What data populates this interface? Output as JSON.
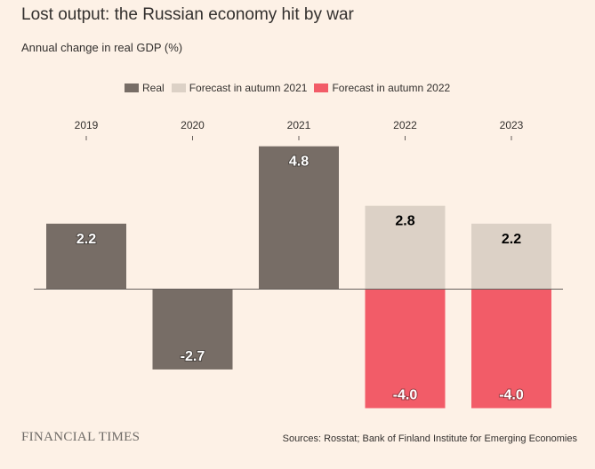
{
  "header": {
    "title": "Lost output: the Russian economy hit by war",
    "subtitle": "Annual change in real GDP (%)"
  },
  "legend": [
    {
      "label": "Real",
      "color": "#776d66"
    },
    {
      "label": "Forecast in autumn 2021",
      "color": "#dcd1c6"
    },
    {
      "label": "Forecast in autumn 2022",
      "color": "#f25c68"
    }
  ],
  "footer": {
    "brand": "FINANCIAL TIMES",
    "source": "Sources: Rosstat; Bank of Finland Institute for Emerging Economies"
  },
  "chart_data": {
    "type": "bar",
    "title": "Lost output: the Russian economy hit by war",
    "ylabel": "Annual change in real GDP (%)",
    "xlabel": "",
    "ylim": [
      -5.0,
      5.0
    ],
    "grid": false,
    "legend_position": "top",
    "categories": [
      "2019",
      "2020",
      "2021",
      "2022",
      "2023"
    ],
    "series": [
      {
        "name": "Real",
        "color": "#776d66",
        "values": [
          2.2,
          -2.7,
          4.8,
          null,
          null
        ]
      },
      {
        "name": "Forecast in autumn 2021",
        "color": "#dcd1c6",
        "values": [
          null,
          null,
          null,
          2.8,
          2.2
        ]
      },
      {
        "name": "Forecast in autumn 2022",
        "color": "#f25c68",
        "values": [
          null,
          null,
          null,
          -4.0,
          -4.0
        ]
      }
    ],
    "data_labels": [
      {
        "category": "2019",
        "series": "Real",
        "text": "2.2"
      },
      {
        "category": "2020",
        "series": "Real",
        "text": "-2.7"
      },
      {
        "category": "2021",
        "series": "Real",
        "text": "4.8"
      },
      {
        "category": "2022",
        "series": "Forecast in autumn 2021",
        "text": "2.8"
      },
      {
        "category": "2023",
        "series": "Forecast in autumn 2021",
        "text": "2.2"
      },
      {
        "category": "2022",
        "series": "Forecast in autumn 2022",
        "text": "-4.0"
      },
      {
        "category": "2023",
        "series": "Forecast in autumn 2022",
        "text": "-4.0"
      }
    ]
  }
}
